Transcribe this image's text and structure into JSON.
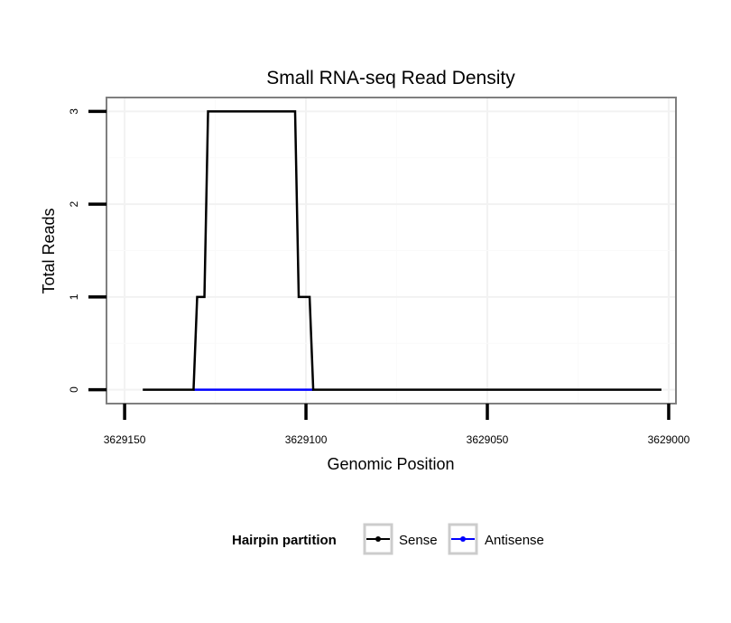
{
  "chart_data": {
    "type": "line",
    "title": "Small RNA-seq Read Density",
    "xlabel": "Genomic Position",
    "ylabel": "Total Reads",
    "x_reversed": true,
    "xlim": [
      3629155,
      3628998
    ],
    "ylim": [
      -0.15,
      3.15
    ],
    "x_ticks": [
      3629150,
      3629100,
      3629050,
      3629000
    ],
    "x_tick_labels": [
      "3629150",
      "3629100",
      "3629050",
      "3629000"
    ],
    "y_ticks": [
      0,
      1,
      2,
      3
    ],
    "y_tick_labels": [
      "0",
      "1",
      "2",
      "3"
    ],
    "grid": true,
    "legend": {
      "title": "Hairpin partition",
      "position": "bottom"
    },
    "series": [
      {
        "name": "Sense",
        "color": "#000000",
        "x": [
          3629145,
          3629131,
          3629130,
          3629128,
          3629127,
          3629115,
          3629111,
          3629103,
          3629102,
          3629099,
          3629098,
          3629002
        ],
        "y": [
          0,
          0,
          1,
          1,
          3,
          3,
          3,
          3,
          1,
          1,
          0,
          0
        ]
      },
      {
        "name": "Antisense",
        "color": "#0000ff",
        "x": [
          3629131,
          3629098
        ],
        "y": [
          0,
          0
        ]
      }
    ]
  }
}
